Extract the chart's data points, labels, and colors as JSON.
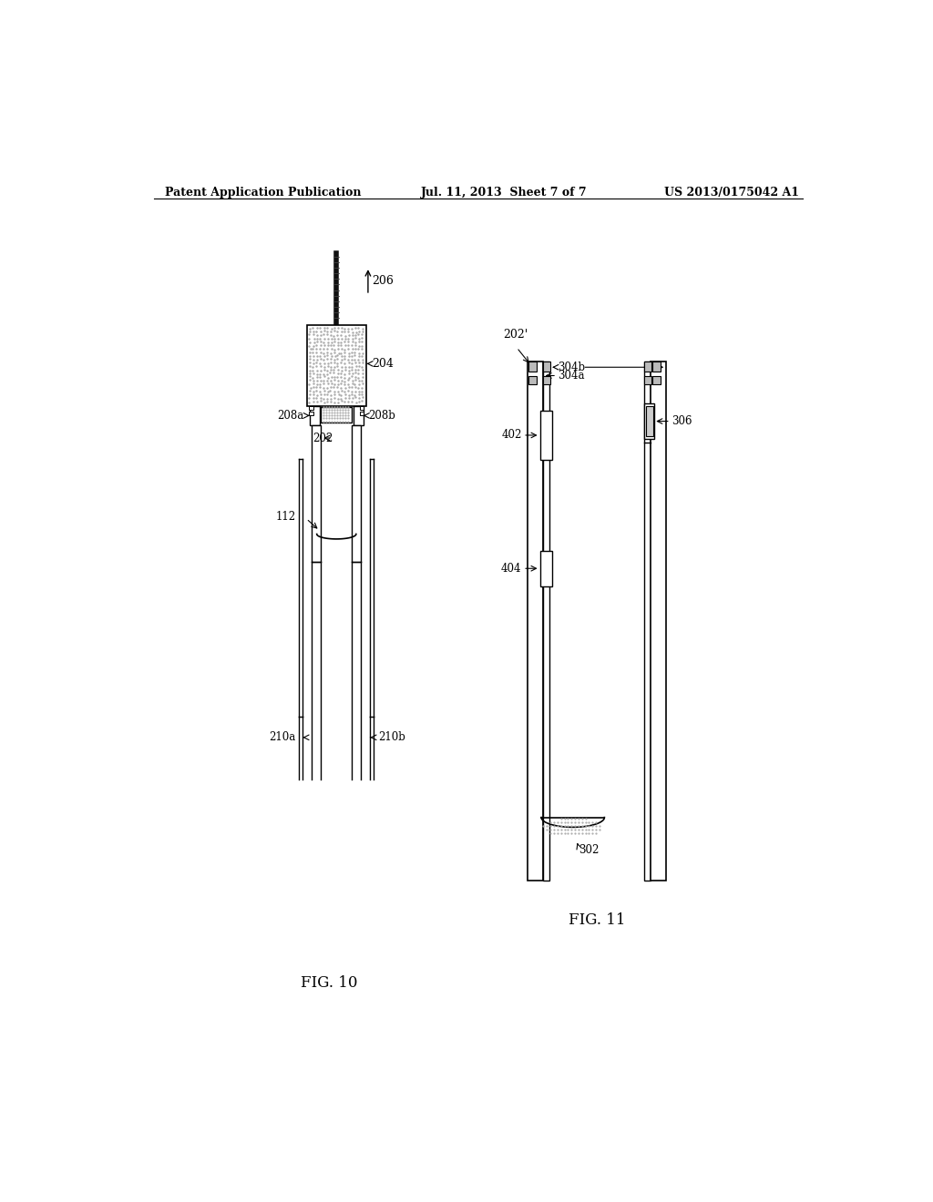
{
  "header_left": "Patent Application Publication",
  "header_center": "Jul. 11, 2013  Sheet 7 of 7",
  "header_right": "US 2013/0175042 A1",
  "fig10_label": "FIG. 10",
  "fig11_label": "FIG. 11",
  "bg_color": "#ffffff",
  "line_color": "#000000",
  "label_206": "206",
  "label_204": "204",
  "label_208a": "208a",
  "label_208b": "208b",
  "label_202": "202",
  "label_112": "112",
  "label_210a": "210a",
  "label_210b": "210b",
  "label_202p": "202'",
  "label_304b": "304b",
  "label_304a": "304a",
  "label_306": "306",
  "label_402": "402",
  "label_404": "404",
  "label_302": "302"
}
